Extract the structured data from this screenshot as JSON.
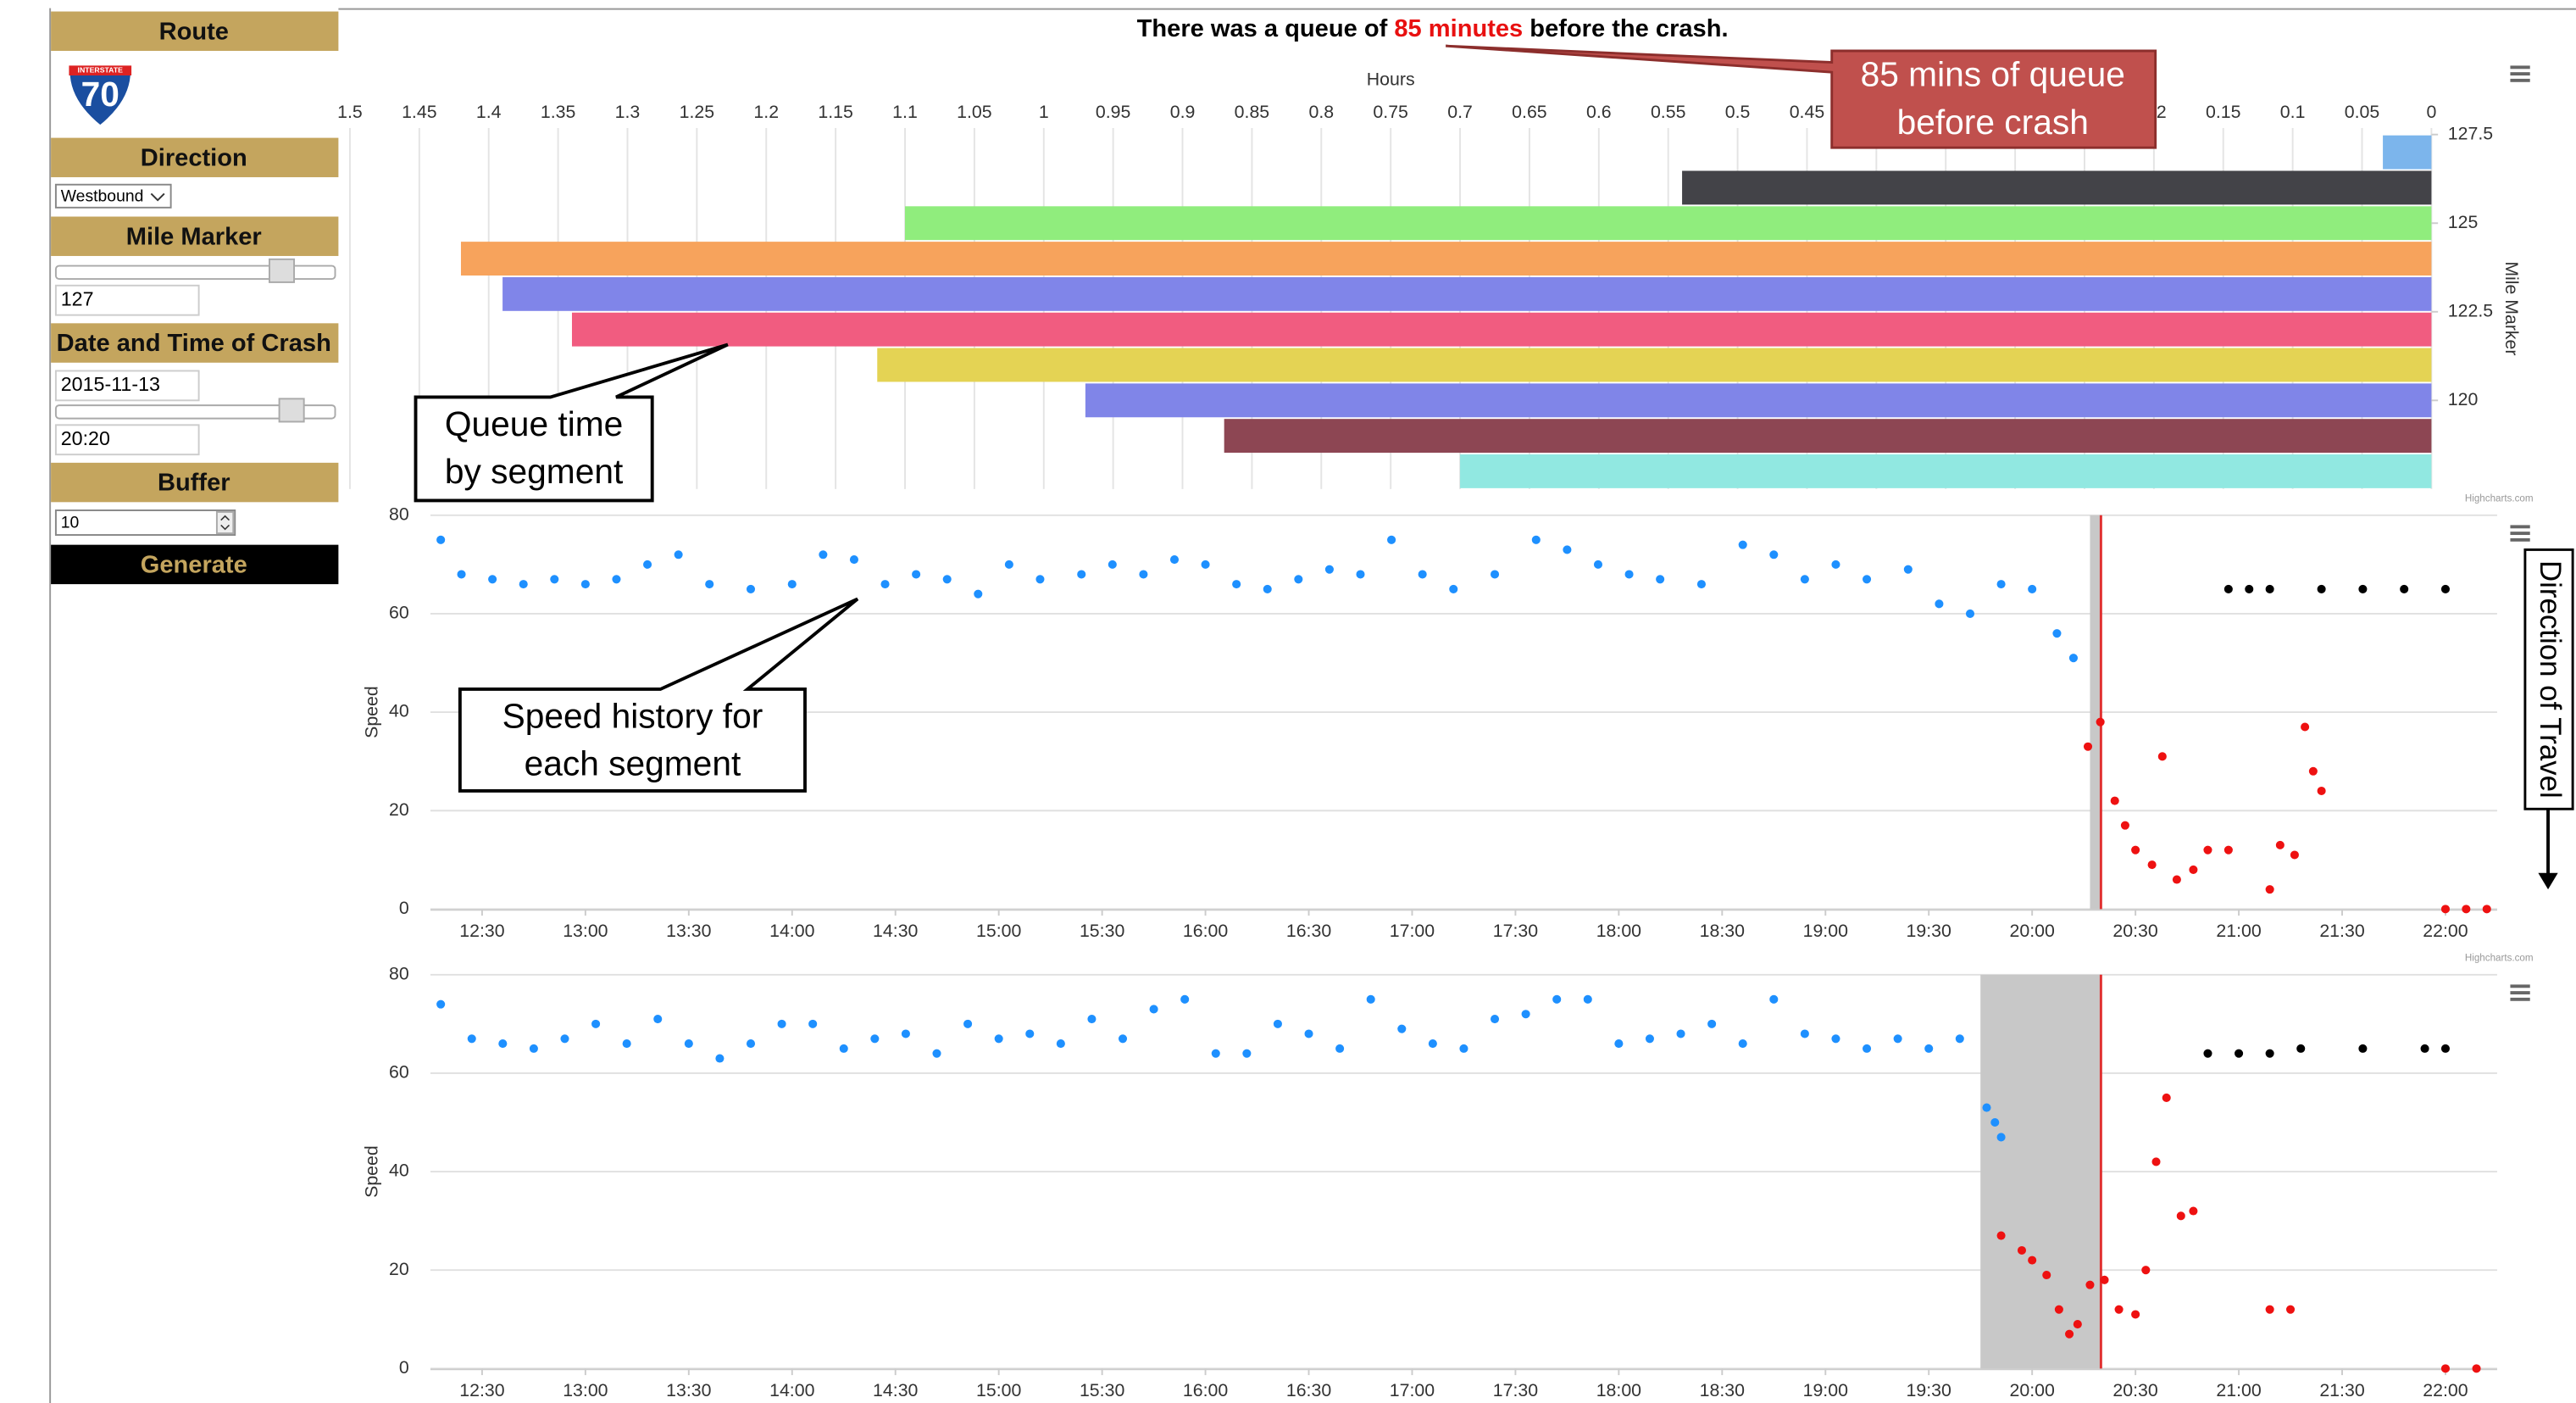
{
  "sidebar": {
    "route_label": "Route",
    "shield_top": "INTERSTATE",
    "shield_number": "70",
    "direction_label": "Direction",
    "direction_value": "Westbound",
    "mile_marker_label": "Mile Marker",
    "mile_marker_value": "127",
    "datetime_label": "Date and Time of Crash",
    "date_value": "2015-11-13",
    "time_value": "20:20",
    "buffer_label": "Buffer",
    "buffer_value": "10",
    "generate_label": "Generate"
  },
  "page_title": {
    "before": "There was a queue of ",
    "highlight": "85 minutes",
    "after": " before the crash."
  },
  "annotations": [
    {
      "lines": [
        "85 mins of queue",
        "before crash"
      ]
    },
    {
      "lines": [
        "Queue time",
        "by segment"
      ]
    },
    {
      "lines": [
        "Speed history for",
        "each segment"
      ]
    },
    {
      "lines": [
        "Direction of Travel"
      ]
    }
  ],
  "chart_data": [
    {
      "type": "bar",
      "orientation": "horizontal",
      "xlabel": "Hours",
      "ylabel": "Mile Marker",
      "credits": "Highcharts.com",
      "categories": [
        null,
        null,
        null,
        null,
        null,
        null,
        null,
        null,
        null,
        null
      ],
      "values": [
        0.035,
        0.54,
        1.1,
        1.42,
        1.39,
        1.34,
        1.12,
        0.97,
        0.87,
        0.7
      ],
      "colors": [
        "#7cb5ec",
        "#434348",
        "#90ed7d",
        "#f7a35c",
        "#8085e9",
        "#f15c80",
        "#e4d354",
        "#8085e8",
        "#8d4653",
        "#91e8e1"
      ],
      "xlim": [
        1.5,
        0
      ],
      "xticks": [
        1.5,
        1.45,
        1.4,
        1.35,
        1.3,
        1.25,
        1.2,
        1.15,
        1.1,
        1.05,
        1,
        0.95,
        0.9,
        0.85,
        0.8,
        0.75,
        0.7,
        0.65,
        0.6,
        0.55,
        0.5,
        0.45,
        0.4,
        0.35,
        0.3,
        0.25,
        0.2,
        0.15,
        0.1,
        0.05,
        0
      ],
      "ylim": [
        117.5,
        127.5
      ],
      "yticks": [
        127.5,
        125,
        122.5,
        120
      ],
      "grid": true
    },
    {
      "type": "scatter",
      "ylabel": "Speed",
      "credits": "Highcharts.com",
      "xlim": [
        12.25,
        22.25
      ],
      "xticks": [
        {
          "value": 12.5,
          "label": "12:30"
        },
        {
          "value": 13,
          "label": "13:00"
        },
        {
          "value": 13.5,
          "label": "13:30"
        },
        {
          "value": 14,
          "label": "14:00"
        },
        {
          "value": 14.5,
          "label": "14:30"
        },
        {
          "value": 15,
          "label": "15:00"
        },
        {
          "value": 15.5,
          "label": "15:30"
        },
        {
          "value": 16,
          "label": "16:00"
        },
        {
          "value": 16.5,
          "label": "16:30"
        },
        {
          "value": 17,
          "label": "17:00"
        },
        {
          "value": 17.5,
          "label": "17:30"
        },
        {
          "value": 18,
          "label": "18:00"
        },
        {
          "value": 18.5,
          "label": "18:30"
        },
        {
          "value": 19,
          "label": "19:00"
        },
        {
          "value": 19.5,
          "label": "19:30"
        },
        {
          "value": 20,
          "label": "20:00"
        },
        {
          "value": 20.5,
          "label": "20:30"
        },
        {
          "value": 21,
          "label": "21:00"
        },
        {
          "value": 21.5,
          "label": "21:30"
        },
        {
          "value": 22,
          "label": "22:00"
        }
      ],
      "ylim": [
        0,
        80
      ],
      "yticks": [
        0,
        20,
        40,
        60,
        80
      ],
      "grid": true,
      "band": {
        "from": 20.28,
        "to": 20.33,
        "color": "#c8c8c8"
      },
      "crash_line": {
        "value": 20.333,
        "color": "#e03030"
      },
      "series": [
        {
          "color": "#1e90ff",
          "x": [
            12.3,
            12.4,
            12.55,
            12.7,
            12.85,
            13.0,
            13.15,
            13.3,
            13.45,
            13.6,
            13.8,
            14.0,
            14.15,
            14.3,
            14.45,
            14.6,
            14.75,
            14.9,
            15.05,
            15.2,
            15.4,
            15.55,
            15.7,
            15.85,
            16.0,
            16.15,
            16.3,
            16.45,
            16.6,
            16.75,
            16.9,
            17.05,
            17.2,
            17.4,
            17.6,
            17.75,
            17.9,
            18.05,
            18.2,
            18.4,
            18.6,
            18.75,
            18.9,
            19.05,
            19.2,
            19.4,
            19.55,
            19.7,
            19.85,
            20.0,
            20.12,
            20.2
          ],
          "values": [
            75,
            68,
            67,
            66,
            67,
            66,
            67,
            70,
            72,
            66,
            65,
            66,
            72,
            71,
            66,
            68,
            67,
            64,
            70,
            67,
            68,
            70,
            68,
            71,
            70,
            66,
            65,
            67,
            69,
            68,
            75,
            68,
            65,
            68,
            75,
            73,
            70,
            68,
            67,
            66,
            74,
            72,
            67,
            70,
            67,
            69,
            62,
            60,
            66,
            65,
            56,
            51
          ]
        },
        {
          "color": "#ee1111",
          "x": [
            20.27,
            20.33,
            20.4,
            20.45,
            20.5,
            20.58,
            20.63,
            20.7,
            20.78,
            20.85,
            20.95,
            21.15,
            21.2,
            21.27,
            21.32,
            21.36,
            21.4,
            22.0,
            22.1,
            22.2
          ],
          "values": [
            33,
            38,
            22,
            17,
            12,
            9,
            31,
            6,
            8,
            12,
            12,
            4,
            13,
            11,
            37,
            28,
            24,
            0,
            0,
            0
          ]
        },
        {
          "color": "#000000",
          "x": [
            20.95,
            21.05,
            21.15,
            21.4,
            21.6,
            21.8,
            22.0
          ],
          "values": [
            65,
            65,
            65,
            65,
            65,
            65,
            65
          ]
        }
      ]
    },
    {
      "type": "scatter",
      "ylabel": "Speed",
      "xlim": [
        12.25,
        22.25
      ],
      "xticks": [
        {
          "value": 12.5,
          "label": "12:30"
        },
        {
          "value": 13,
          "label": "13:00"
        },
        {
          "value": 13.5,
          "label": "13:30"
        },
        {
          "value": 14,
          "label": "14:00"
        },
        {
          "value": 14.5,
          "label": "14:30"
        },
        {
          "value": 15,
          "label": "15:00"
        },
        {
          "value": 15.5,
          "label": "15:30"
        },
        {
          "value": 16,
          "label": "16:00"
        },
        {
          "value": 16.5,
          "label": "16:30"
        },
        {
          "value": 17,
          "label": "17:00"
        },
        {
          "value": 17.5,
          "label": "17:30"
        },
        {
          "value": 18,
          "label": "18:00"
        },
        {
          "value": 18.5,
          "label": "18:30"
        },
        {
          "value": 19,
          "label": "19:00"
        },
        {
          "value": 19.5,
          "label": "19:30"
        },
        {
          "value": 20,
          "label": "20:00"
        },
        {
          "value": 20.5,
          "label": "20:30"
        },
        {
          "value": 21,
          "label": "21:00"
        },
        {
          "value": 21.5,
          "label": "21:30"
        },
        {
          "value": 22,
          "label": "22:00"
        }
      ],
      "ylim": [
        0,
        80
      ],
      "yticks": [
        0,
        20,
        40,
        60,
        80
      ],
      "grid": true,
      "band": {
        "from": 19.75,
        "to": 20.33,
        "color": "#c8c8c8"
      },
      "crash_line": {
        "value": 20.333,
        "color": "#e03030"
      },
      "series": [
        {
          "color": "#1e90ff",
          "x": [
            12.3,
            12.45,
            12.6,
            12.75,
            12.9,
            13.05,
            13.2,
            13.35,
            13.5,
            13.65,
            13.8,
            13.95,
            14.1,
            14.25,
            14.4,
            14.55,
            14.7,
            14.85,
            15.0,
            15.15,
            15.3,
            15.45,
            15.6,
            15.75,
            15.9,
            16.05,
            16.2,
            16.35,
            16.5,
            16.65,
            16.8,
            16.95,
            17.1,
            17.25,
            17.4,
            17.55,
            17.7,
            17.85,
            18.0,
            18.15,
            18.3,
            18.45,
            18.6,
            18.75,
            18.9,
            19.05,
            19.2,
            19.35,
            19.5,
            19.65,
            19.78,
            19.82,
            19.85
          ],
          "values": [
            74,
            67,
            66,
            65,
            67,
            70,
            66,
            71,
            66,
            63,
            66,
            70,
            70,
            65,
            67,
            68,
            64,
            70,
            67,
            68,
            66,
            71,
            67,
            73,
            75,
            64,
            64,
            70,
            68,
            65,
            75,
            69,
            66,
            65,
            71,
            72,
            75,
            75,
            66,
            67,
            68,
            70,
            66,
            75,
            68,
            67,
            65,
            67,
            65,
            67,
            53,
            50,
            47
          ]
        },
        {
          "color": "#ee1111",
          "x": [
            19.85,
            19.95,
            20.0,
            20.07,
            20.13,
            20.18,
            20.22,
            20.28,
            20.35,
            20.42,
            20.5,
            20.55,
            20.6,
            20.65,
            20.72,
            20.78,
            21.15,
            21.25,
            22.0,
            22.15
          ],
          "values": [
            27,
            24,
            22,
            19,
            12,
            7,
            9,
            17,
            18,
            12,
            11,
            20,
            42,
            55,
            31,
            32,
            12,
            12,
            0,
            0
          ]
        },
        {
          "color": "#000000",
          "x": [
            20.85,
            21.0,
            21.15,
            21.3,
            21.6,
            21.9,
            22.0
          ],
          "values": [
            64,
            64,
            64,
            65,
            65,
            65,
            65
          ]
        }
      ]
    }
  ]
}
